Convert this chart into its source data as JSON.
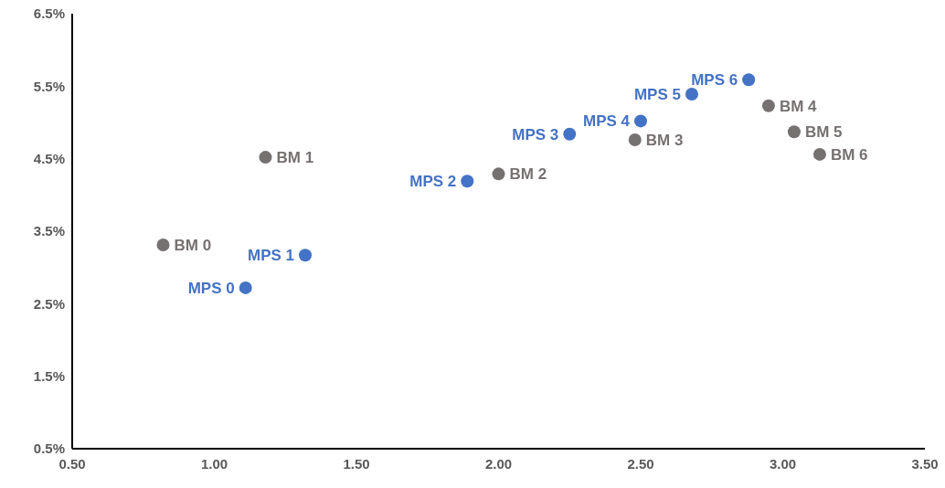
{
  "chart_data": {
    "type": "scatter",
    "xlim": [
      0.5,
      3.5
    ],
    "ylim": [
      0.5,
      6.5
    ],
    "xticks": [
      {
        "value": 0.5,
        "label": "0.50"
      },
      {
        "value": 1,
        "label": "1.00"
      },
      {
        "value": 1.5,
        "label": "1.50"
      },
      {
        "value": 2,
        "label": "2.00"
      },
      {
        "value": 2.5,
        "label": "2.50"
      },
      {
        "value": 3,
        "label": "3.00"
      },
      {
        "value": 3.5,
        "label": "3.50"
      }
    ],
    "yticks": [
      {
        "value": 0.5,
        "label": "0.5%"
      },
      {
        "value": 1.5,
        "label": "1.5%"
      },
      {
        "value": 2.5,
        "label": "2.5%"
      },
      {
        "value": 3.5,
        "label": "3.5%"
      },
      {
        "value": 4.5,
        "label": "4.5%"
      },
      {
        "value": 5.5,
        "label": "5.5%"
      },
      {
        "value": 6.5,
        "label": "6.5%"
      }
    ],
    "grid": false,
    "marker": "circle",
    "series": [
      {
        "color": "#767171",
        "x": [
          0.82,
          1.18,
          2.0,
          2.48,
          2.95,
          3.04,
          3.13
        ],
        "values": [
          3.31,
          4.52,
          4.29,
          4.76,
          5.23,
          4.87,
          4.56
        ]
      },
      {
        "color": "#4472c4",
        "x": [
          1.11,
          1.32,
          1.89,
          2.25,
          2.5,
          2.68,
          2.88
        ],
        "values": [
          2.72,
          3.17,
          4.19,
          4.84,
          5.02,
          5.39,
          5.59
        ]
      }
    ],
    "annotations": [
      {
        "text": "BM 0",
        "x": 0.82,
        "y": 3.31
      },
      {
        "text": "BM 1",
        "x": 1.18,
        "y": 4.52
      },
      {
        "text": "BM 2",
        "x": 2.0,
        "y": 4.29
      },
      {
        "text": "BM 3",
        "x": 2.48,
        "y": 4.76
      },
      {
        "text": "BM 4",
        "x": 2.95,
        "y": 5.23
      },
      {
        "text": "BM 5",
        "x": 3.04,
        "y": 4.87
      },
      {
        "text": "BM 6",
        "x": 3.13,
        "y": 4.56
      },
      {
        "text": "MPS 0",
        "x": 1.11,
        "y": 2.72
      },
      {
        "text": "MPS 1",
        "x": 1.32,
        "y": 3.17
      },
      {
        "text": "MPS 2",
        "x": 1.89,
        "y": 4.19
      },
      {
        "text": "MPS 3",
        "x": 2.25,
        "y": 4.84
      },
      {
        "text": "MPS 4",
        "x": 2.5,
        "y": 5.02
      },
      {
        "text": "MPS 5",
        "x": 2.68,
        "y": 5.39
      },
      {
        "text": "MPS 6",
        "x": 2.88,
        "y": 5.59
      }
    ]
  }
}
